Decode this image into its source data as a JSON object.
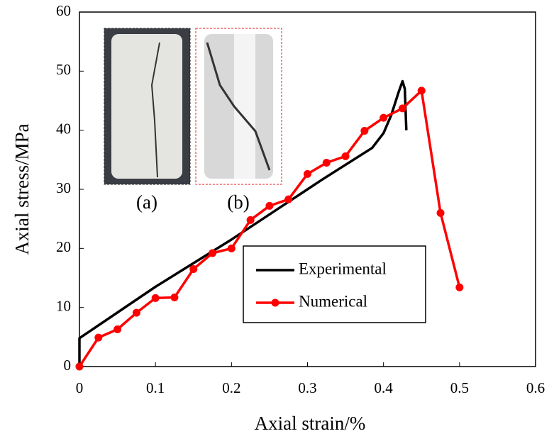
{
  "chart_data": {
    "type": "line",
    "xlabel": "Axial strain/%",
    "ylabel": "Axial stress/MPa",
    "xlim": [
      0,
      0.6
    ],
    "ylim": [
      0,
      60
    ],
    "xticks": [
      0,
      0.1,
      0.2,
      0.3,
      0.4,
      0.5,
      0.6
    ],
    "yticks": [
      0,
      10,
      20,
      30,
      40,
      50,
      60
    ],
    "grid": false,
    "legend": "lower right",
    "series": [
      {
        "name": "Experimental",
        "color": "#000000",
        "markers": false,
        "x": [
          0,
          0,
          0.1,
          0.2,
          0.3,
          0.32,
          0.385,
          0.4,
          0.41,
          0.42,
          0.425,
          0.428,
          0.43
        ],
        "values": [
          0,
          4.8,
          13.5,
          21.5,
          30,
          31.7,
          37,
          39.5,
          42.5,
          46.5,
          48.3,
          47,
          40
        ]
      },
      {
        "name": "Numerical",
        "color": "#ff0000",
        "markers": true,
        "x": [
          0,
          0.025,
          0.05,
          0.075,
          0.1,
          0.125,
          0.15,
          0.175,
          0.2,
          0.225,
          0.25,
          0.275,
          0.3,
          0.325,
          0.35,
          0.375,
          0.4,
          0.425,
          0.45,
          0.475,
          0.5
        ],
        "values": [
          0,
          4.9,
          6.3,
          9.1,
          11.6,
          11.7,
          16.5,
          19.2,
          20.0,
          24.8,
          27.2,
          28.3,
          32.6,
          34.5,
          35.6,
          39.9,
          42.1,
          43.7,
          46.7,
          26.0,
          13.4
        ]
      }
    ],
    "annotations": [
      {
        "text": "(a)",
        "color": "#000000"
      },
      {
        "text": "(b)",
        "color": "#e02020"
      }
    ]
  }
}
